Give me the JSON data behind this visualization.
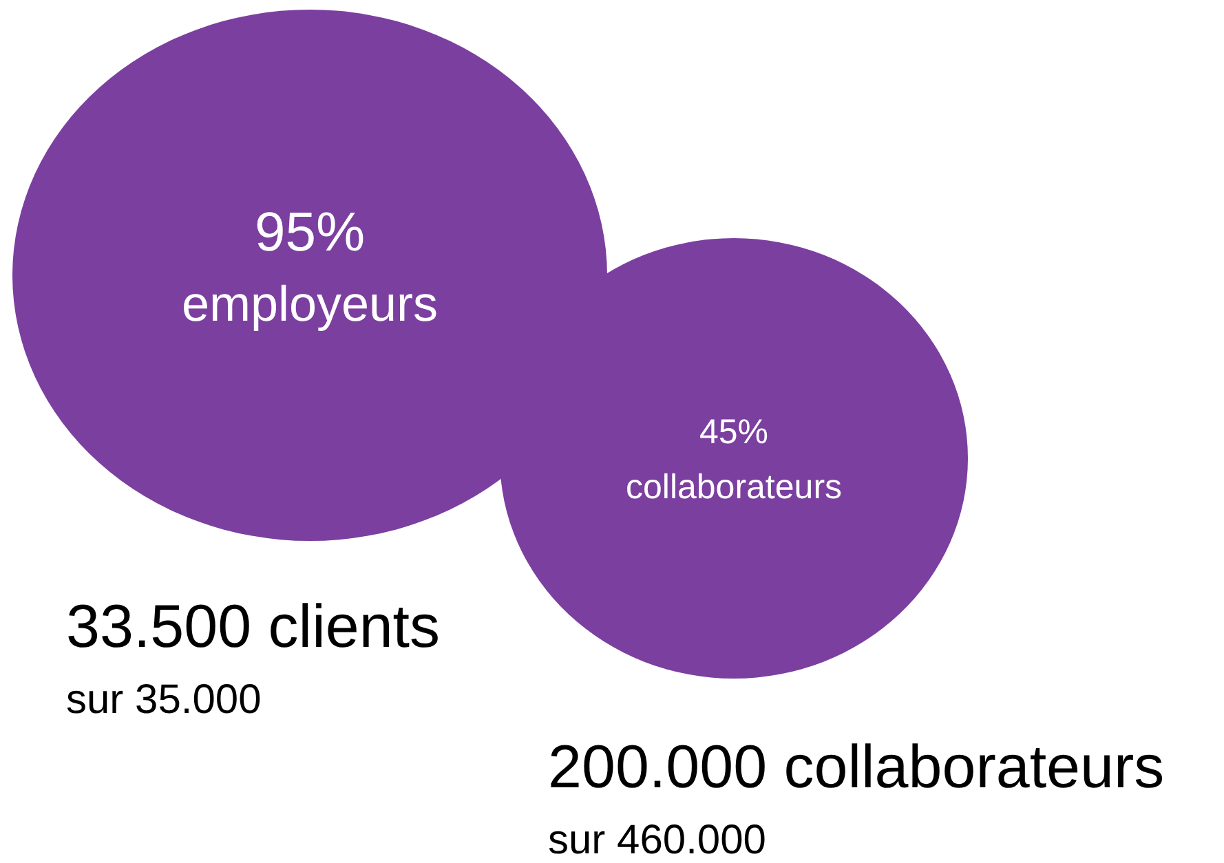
{
  "chart_data": {
    "type": "other",
    "categories": [
      "employeurs",
      "collaborateurs"
    ],
    "values": [
      95,
      45
    ],
    "value_labels": [
      "95%",
      "45%"
    ],
    "color": "#7b3fa0",
    "annotations": [
      "33.500 clients",
      "sur 35.000",
      "200.000 collaborateurs",
      "sur 460.000"
    ]
  }
}
